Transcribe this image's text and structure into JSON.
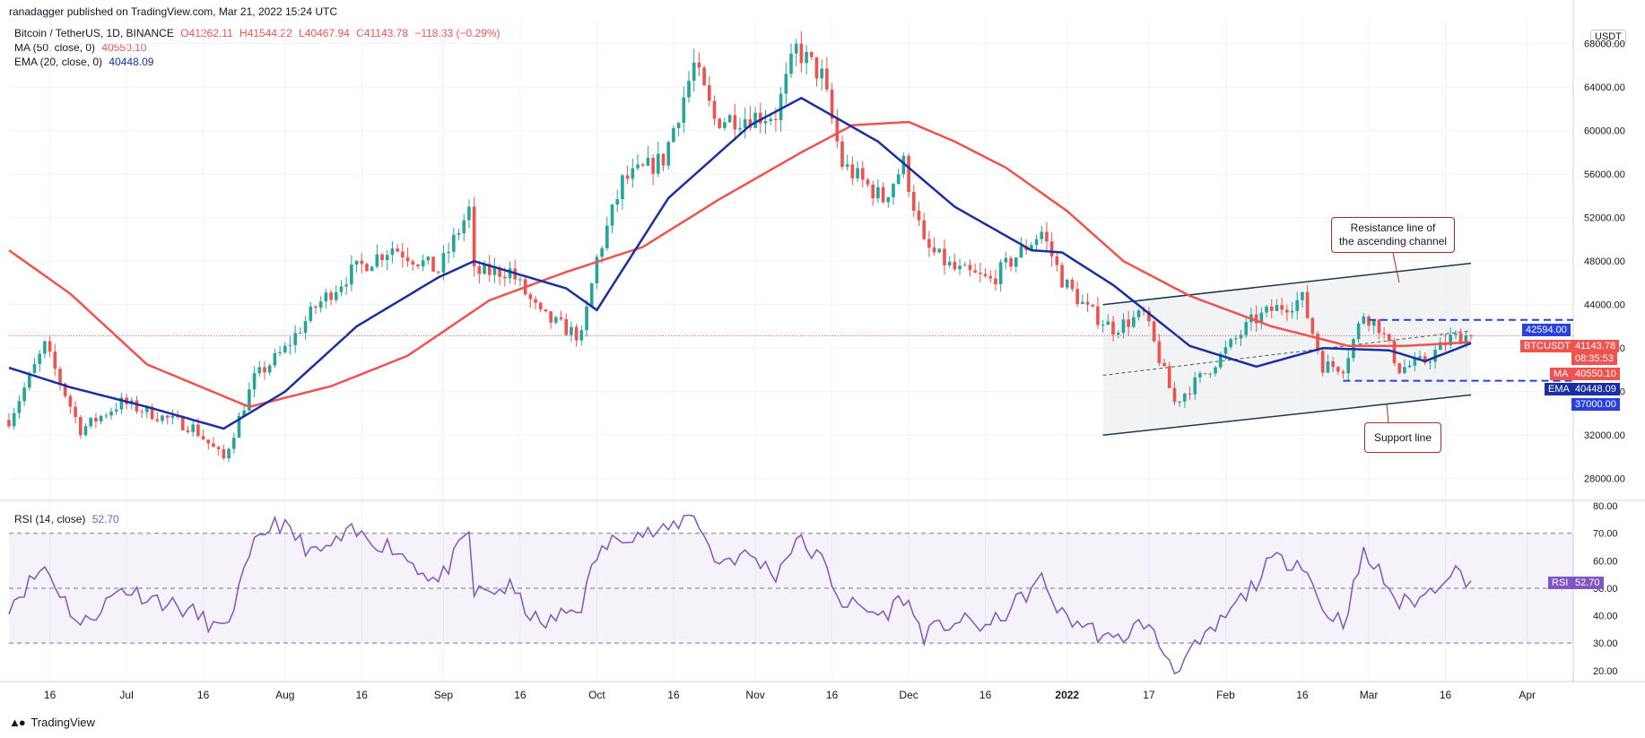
{
  "header": {
    "published": "ranadagger published on TradingView.com, Mar 21, 2022 15:24 UTC"
  },
  "legend": {
    "symbol": "Bitcoin / TetherUS, 1D, BINANCE",
    "o": "O41262.11",
    "h": "H41544.22",
    "l": "L40467.94",
    "c": "C41143.78",
    "chg": "−118.33 (−0.29%)",
    "ma_label": "MA (50, close, 0)",
    "ma_value": "40550.10",
    "ema_label": "EMA (20, close, 0)",
    "ema_value": "40448.09",
    "rsi_label": "RSI (14, close)",
    "rsi_value": "52.70"
  },
  "unit": "USDT",
  "badges": {
    "level_high": "42594.00",
    "btc_label": "BTCUSDT",
    "btc_price": "41143.78",
    "countdown": "08:35:53",
    "ma_tag": "MA",
    "ma_value": "40550.10",
    "ema_tag": "EMA",
    "ema_value": "40448.09",
    "level_low": "37000.00",
    "rsi_tag": "RSI",
    "rsi_value": "52.70"
  },
  "annotations": {
    "resistance_1": "Resistance line of",
    "resistance_2": "the ascending channel",
    "support": "Support line"
  },
  "footer": {
    "brand": "TradingView"
  },
  "colors": {
    "up": "#26a69a",
    "down": "#ef5350",
    "ma": "#ef5350",
    "ema": "#1a2fa0",
    "rsi": "#7e57c2",
    "level": "#2940e0",
    "channel": "#1e3a4a"
  },
  "chart_data": {
    "type": "candlestick",
    "price_ticks": [
      28000,
      32000,
      36000,
      40000,
      44000,
      48000,
      52000,
      56000,
      60000,
      64000,
      68000
    ],
    "price_tick_labels": [
      "28000.00",
      "32000.00",
      "36000.00",
      "40000.00",
      "44000.00",
      "48000.00",
      "52000.00",
      "56000.00",
      "60000.00",
      "64000.00",
      "68000.00"
    ],
    "price_range": [
      26000,
      70200
    ],
    "rsi_ticks": [
      20,
      30,
      40,
      50,
      60,
      70,
      80
    ],
    "rsi_tick_labels": [
      "20.00",
      "30.00",
      "40.00",
      "50.00",
      "60.00",
      "70.00",
      "80.00"
    ],
    "rsi_range": [
      16,
      82
    ],
    "x_labels": [
      "16",
      "Jul",
      "16",
      "Aug",
      "16",
      "Sep",
      "16",
      "Oct",
      "16",
      "Nov",
      "16",
      "Dec",
      "16",
      "2022",
      "17",
      "Feb",
      "16",
      "Mar",
      "16",
      "Apr"
    ],
    "x_label_dates": [
      "2021-06-16",
      "2021-07-01",
      "2021-07-16",
      "2021-08-01",
      "2021-08-16",
      "2021-09-01",
      "2021-09-16",
      "2021-10-01",
      "2021-10-16",
      "2021-11-01",
      "2021-11-16",
      "2021-12-01",
      "2021-12-16",
      "2022-01-01",
      "2022-01-17",
      "2022-02-01",
      "2022-02-16",
      "2022-03-01",
      "2022-03-16",
      "2022-04-01"
    ],
    "x_range": [
      "2021-06-08",
      "2022-04-10"
    ],
    "close_anchors": [
      [
        "2021-06-08",
        33400
      ],
      [
        "2021-06-15",
        40200
      ],
      [
        "2021-06-22",
        32500
      ],
      [
        "2021-06-30",
        35000
      ],
      [
        "2021-07-07",
        33800
      ],
      [
        "2021-07-14",
        32700
      ],
      [
        "2021-07-20",
        29800
      ],
      [
        "2021-07-26",
        37200
      ],
      [
        "2021-08-01",
        39900
      ],
      [
        "2021-08-07",
        43800
      ],
      [
        "2021-08-14",
        47000
      ],
      [
        "2021-08-22",
        49300
      ],
      [
        "2021-08-31",
        47100
      ],
      [
        "2021-09-06",
        52700
      ],
      [
        "2021-09-07",
        46900
      ],
      [
        "2021-09-14",
        47100
      ],
      [
        "2021-09-20",
        43000
      ],
      [
        "2021-09-28",
        41000
      ],
      [
        "2021-10-01",
        48200
      ],
      [
        "2021-10-06",
        55300
      ],
      [
        "2021-10-14",
        57400
      ],
      [
        "2021-10-20",
        66000
      ],
      [
        "2021-10-24",
        61000
      ],
      [
        "2021-10-31",
        61300
      ],
      [
        "2021-11-05",
        61500
      ],
      [
        "2021-11-09",
        67500
      ],
      [
        "2021-11-14",
        65000
      ],
      [
        "2021-11-18",
        56900
      ],
      [
        "2021-11-26",
        53700
      ],
      [
        "2021-11-30",
        57000
      ],
      [
        "2021-12-04",
        49400
      ],
      [
        "2021-12-10",
        47200
      ],
      [
        "2021-12-17",
        46200
      ],
      [
        "2021-12-27",
        50700
      ],
      [
        "2021-12-31",
        46300
      ],
      [
        "2022-01-05",
        43500
      ],
      [
        "2022-01-10",
        41800
      ],
      [
        "2022-01-16",
        43100
      ],
      [
        "2022-01-22",
        35000
      ],
      [
        "2022-01-28",
        37700
      ],
      [
        "2022-02-06",
        42400
      ],
      [
        "2022-02-10",
        43500
      ],
      [
        "2022-02-16",
        44500
      ],
      [
        "2022-02-20",
        38400
      ],
      [
        "2022-02-24",
        38300
      ],
      [
        "2022-02-28",
        43200
      ],
      [
        "2022-03-03",
        42000
      ],
      [
        "2022-03-07",
        38100
      ],
      [
        "2022-03-12",
        38800
      ],
      [
        "2022-03-17",
        40900
      ],
      [
        "2022-03-20",
        41143.78
      ],
      [
        "2022-03-21",
        41143.78
      ]
    ],
    "ma50_anchors": [
      [
        "2021-06-08",
        49000
      ],
      [
        "2021-06-20",
        45000
      ],
      [
        "2021-07-05",
        38500
      ],
      [
        "2021-07-25",
        34600
      ],
      [
        "2021-08-10",
        36500
      ],
      [
        "2021-08-25",
        39300
      ],
      [
        "2021-09-10",
        44400
      ],
      [
        "2021-09-25",
        47000
      ],
      [
        "2021-10-10",
        49300
      ],
      [
        "2021-10-25",
        53700
      ],
      [
        "2021-11-10",
        58000
      ],
      [
        "2021-11-20",
        60500
      ],
      [
        "2021-12-01",
        60800
      ],
      [
        "2021-12-10",
        59000
      ],
      [
        "2021-12-20",
        56600
      ],
      [
        "2022-01-01",
        52600
      ],
      [
        "2022-01-12",
        48000
      ],
      [
        "2022-01-25",
        44800
      ],
      [
        "2022-02-10",
        42000
      ],
      [
        "2022-02-25",
        40200
      ],
      [
        "2022-03-08",
        40200
      ],
      [
        "2022-03-21",
        40550.1
      ]
    ],
    "ema20_anchors": [
      [
        "2021-06-08",
        38200
      ],
      [
        "2021-06-20",
        36400
      ],
      [
        "2021-07-05",
        34600
      ],
      [
        "2021-07-20",
        32600
      ],
      [
        "2021-08-01",
        36000
      ],
      [
        "2021-08-15",
        42000
      ],
      [
        "2021-08-31",
        46500
      ],
      [
        "2021-09-07",
        48000
      ],
      [
        "2021-09-25",
        45500
      ],
      [
        "2021-10-01",
        43500
      ],
      [
        "2021-10-15",
        53800
      ],
      [
        "2021-10-31",
        60500
      ],
      [
        "2021-11-10",
        63000
      ],
      [
        "2021-11-25",
        59000
      ],
      [
        "2021-12-10",
        53000
      ],
      [
        "2021-12-25",
        49000
      ],
      [
        "2021-12-31",
        48800
      ],
      [
        "2022-01-10",
        45800
      ],
      [
        "2022-01-25",
        40200
      ],
      [
        "2022-02-07",
        38300
      ],
      [
        "2022-02-20",
        40000
      ],
      [
        "2022-03-05",
        39800
      ],
      [
        "2022-03-12",
        38800
      ],
      [
        "2022-03-21",
        40448.09
      ]
    ],
    "rsi_anchors": [
      [
        "2021-06-08",
        44
      ],
      [
        "2021-06-15",
        58
      ],
      [
        "2021-06-22",
        36
      ],
      [
        "2021-06-30",
        50
      ],
      [
        "2021-07-07",
        46
      ],
      [
        "2021-07-14",
        41
      ],
      [
        "2021-07-20",
        34
      ],
      [
        "2021-07-26",
        65
      ],
      [
        "2021-07-30",
        75
      ],
      [
        "2021-08-07",
        62
      ],
      [
        "2021-08-14",
        70
      ],
      [
        "2021-08-22",
        65
      ],
      [
        "2021-08-31",
        52
      ],
      [
        "2021-09-06",
        70
      ],
      [
        "2021-09-07",
        48
      ],
      [
        "2021-09-14",
        50
      ],
      [
        "2021-09-20",
        36
      ],
      [
        "2021-09-28",
        44
      ],
      [
        "2021-10-01",
        62
      ],
      [
        "2021-10-06",
        70
      ],
      [
        "2021-10-14",
        70
      ],
      [
        "2021-10-20",
        78
      ],
      [
        "2021-10-24",
        60
      ],
      [
        "2021-10-31",
        62
      ],
      [
        "2021-11-05",
        55
      ],
      [
        "2021-11-09",
        68
      ],
      [
        "2021-11-14",
        60
      ],
      [
        "2021-11-18",
        45
      ],
      [
        "2021-11-26",
        40
      ],
      [
        "2021-11-30",
        47
      ],
      [
        "2021-12-04",
        33
      ],
      [
        "2021-12-10",
        38
      ],
      [
        "2021-12-17",
        36
      ],
      [
        "2021-12-27",
        53
      ],
      [
        "2021-12-31",
        40
      ],
      [
        "2022-01-05",
        36
      ],
      [
        "2022-01-10",
        30
      ],
      [
        "2022-01-16",
        38
      ],
      [
        "2022-01-22",
        21
      ],
      [
        "2022-01-28",
        31
      ],
      [
        "2022-02-06",
        50
      ],
      [
        "2022-02-10",
        60
      ],
      [
        "2022-02-16",
        60
      ],
      [
        "2022-02-20",
        42
      ],
      [
        "2022-02-24",
        38
      ],
      [
        "2022-02-28",
        62
      ],
      [
        "2022-03-03",
        56
      ],
      [
        "2022-03-07",
        44
      ],
      [
        "2022-03-12",
        47
      ],
      [
        "2022-03-17",
        57
      ],
      [
        "2022-03-21",
        52.7
      ]
    ],
    "channel_upper": [
      [
        "2022-01-08",
        44000
      ],
      [
        "2022-03-21",
        47800
      ]
    ],
    "channel_lower": [
      [
        "2022-01-08",
        32000
      ],
      [
        "2022-03-21",
        35700
      ]
    ],
    "channel_mid": [
      [
        "2022-01-08",
        37500
      ],
      [
        "2022-03-21",
        41600
      ]
    ],
    "range_high": 42594.0,
    "range_low": 37000.0,
    "range_start": "2022-03-01",
    "current_price": 41143.78
  }
}
